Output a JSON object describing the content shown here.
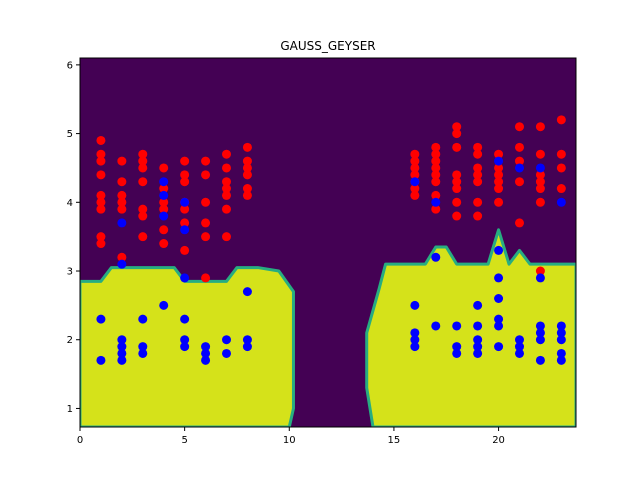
{
  "chart_data": {
    "type": "scatter",
    "title": "GAUSS_GEYSER",
    "xlabel": "",
    "ylabel": "",
    "xlim": [
      0,
      23.7
    ],
    "ylim": [
      0.73,
      6.1
    ],
    "xticks": [
      0,
      5,
      10,
      15,
      20
    ],
    "yticks": [
      1,
      2,
      3,
      4,
      5,
      6
    ],
    "grid": false,
    "background_regions": {
      "type": "decision-boundary-contour",
      "colors": {
        "class_red": "#440154",
        "class_blue": "#d5e21a",
        "edge": "#27ad81"
      },
      "blue_region_left_boundary": [
        [
          0,
          2.85
        ],
        [
          1,
          2.85
        ],
        [
          1.5,
          3.05
        ],
        [
          4.5,
          3.05
        ],
        [
          5,
          2.85
        ],
        [
          7,
          2.85
        ],
        [
          7.5,
          3.05
        ],
        [
          8.5,
          3.05
        ],
        [
          9.5,
          3.0
        ],
        [
          10.2,
          2.7
        ],
        [
          10.2,
          1.0
        ],
        [
          10,
          0.73
        ]
      ],
      "blue_region_right_boundary": [
        [
          14,
          0.73
        ],
        [
          13.7,
          1.3
        ],
        [
          13.7,
          2.1
        ],
        [
          14.3,
          2.75
        ],
        [
          14.6,
          3.1
        ],
        [
          16.5,
          3.1
        ],
        [
          17.0,
          3.35
        ],
        [
          17.5,
          3.35
        ],
        [
          18,
          3.1
        ],
        [
          19.5,
          3.1
        ],
        [
          20,
          3.6
        ],
        [
          20.5,
          3.1
        ],
        [
          21,
          3.3
        ],
        [
          21.5,
          3.1
        ],
        [
          23.7,
          3.1
        ]
      ]
    },
    "series": [
      {
        "color": "#ff0000",
        "points": [
          [
            1,
            4.9
          ],
          [
            1,
            4.7
          ],
          [
            1,
            4.6
          ],
          [
            1,
            4.4
          ],
          [
            1,
            4.1
          ],
          [
            1,
            4.0
          ],
          [
            1,
            3.9
          ],
          [
            1,
            3.5
          ],
          [
            1,
            3.4
          ],
          [
            2,
            4.6
          ],
          [
            2,
            4.3
          ],
          [
            2,
            4.1
          ],
          [
            2,
            4.0
          ],
          [
            2,
            3.9
          ],
          [
            2,
            3.2
          ],
          [
            3,
            4.7
          ],
          [
            3,
            4.6
          ],
          [
            3,
            4.5
          ],
          [
            3,
            4.3
          ],
          [
            3,
            3.9
          ],
          [
            3,
            3.8
          ],
          [
            3,
            3.5
          ],
          [
            4,
            4.5
          ],
          [
            4,
            4.2
          ],
          [
            4,
            4.0
          ],
          [
            4,
            3.9
          ],
          [
            4,
            3.6
          ],
          [
            4,
            3.4
          ],
          [
            5,
            4.6
          ],
          [
            5,
            4.4
          ],
          [
            5,
            4.3
          ],
          [
            5,
            4.0
          ],
          [
            5,
            3.9
          ],
          [
            5,
            3.7
          ],
          [
            5,
            3.3
          ],
          [
            6,
            4.6
          ],
          [
            6,
            4.4
          ],
          [
            6,
            4.0
          ],
          [
            6,
            3.7
          ],
          [
            6,
            3.5
          ],
          [
            6,
            2.9
          ],
          [
            7,
            4.7
          ],
          [
            7,
            4.5
          ],
          [
            7,
            4.3
          ],
          [
            7,
            4.2
          ],
          [
            7,
            4.1
          ],
          [
            7,
            3.9
          ],
          [
            7,
            3.5
          ],
          [
            8,
            4.8
          ],
          [
            8,
            4.6
          ],
          [
            8,
            4.5
          ],
          [
            8,
            4.4
          ],
          [
            8,
            4.2
          ],
          [
            8,
            4.1
          ],
          [
            16,
            4.7
          ],
          [
            16,
            4.6
          ],
          [
            16,
            4.5
          ],
          [
            16,
            4.4
          ],
          [
            16,
            4.3
          ],
          [
            16,
            4.2
          ],
          [
            16,
            4.1
          ],
          [
            17,
            4.8
          ],
          [
            17,
            4.7
          ],
          [
            17,
            4.6
          ],
          [
            17,
            4.5
          ],
          [
            17,
            4.4
          ],
          [
            17,
            4.3
          ],
          [
            17,
            4.1
          ],
          [
            17,
            3.9
          ],
          [
            18,
            5.1
          ],
          [
            18,
            5.0
          ],
          [
            18,
            4.8
          ],
          [
            18,
            4.4
          ],
          [
            18,
            4.3
          ],
          [
            18,
            4.2
          ],
          [
            18,
            4.0
          ],
          [
            18,
            3.8
          ],
          [
            19,
            4.8
          ],
          [
            19,
            4.7
          ],
          [
            19,
            4.5
          ],
          [
            19,
            4.4
          ],
          [
            19,
            4.3
          ],
          [
            19,
            4.0
          ],
          [
            19,
            3.8
          ],
          [
            20,
            4.7
          ],
          [
            20,
            4.5
          ],
          [
            20,
            4.4
          ],
          [
            20,
            4.3
          ],
          [
            20,
            4.2
          ],
          [
            20,
            4.0
          ],
          [
            21,
            5.1
          ],
          [
            21,
            4.8
          ],
          [
            21,
            4.6
          ],
          [
            21,
            4.3
          ],
          [
            21,
            3.7
          ],
          [
            22,
            5.1
          ],
          [
            22,
            4.7
          ],
          [
            22,
            4.4
          ],
          [
            22,
            4.3
          ],
          [
            22,
            4.2
          ],
          [
            22,
            4.0
          ],
          [
            22,
            3.0
          ],
          [
            23,
            5.2
          ],
          [
            23,
            4.7
          ],
          [
            23,
            4.5
          ],
          [
            23,
            4.2
          ]
        ]
      },
      {
        "color": "#0000ff",
        "points": [
          [
            1,
            2.3
          ],
          [
            1,
            1.7
          ],
          [
            2,
            3.7
          ],
          [
            2,
            3.1
          ],
          [
            2,
            2.0
          ],
          [
            2,
            1.9
          ],
          [
            2,
            1.8
          ],
          [
            2,
            1.7
          ],
          [
            3,
            2.3
          ],
          [
            3,
            1.9
          ],
          [
            3,
            1.8
          ],
          [
            4,
            4.3
          ],
          [
            4,
            4.1
          ],
          [
            4,
            3.8
          ],
          [
            4,
            2.5
          ],
          [
            5,
            4.0
          ],
          [
            5,
            3.6
          ],
          [
            5,
            2.9
          ],
          [
            5,
            2.3
          ],
          [
            5,
            2.0
          ],
          [
            5,
            1.9
          ],
          [
            6,
            1.9
          ],
          [
            6,
            1.8
          ],
          [
            6,
            1.7
          ],
          [
            7,
            2.0
          ],
          [
            7,
            1.8
          ],
          [
            8,
            2.7
          ],
          [
            8,
            2.0
          ],
          [
            8,
            1.9
          ],
          [
            16,
            4.3
          ],
          [
            16,
            2.5
          ],
          [
            16,
            2.1
          ],
          [
            16,
            2.0
          ],
          [
            16,
            1.9
          ],
          [
            17,
            4.0
          ],
          [
            17,
            3.2
          ],
          [
            17,
            2.2
          ],
          [
            18,
            2.2
          ],
          [
            18,
            1.9
          ],
          [
            18,
            1.8
          ],
          [
            19,
            2.5
          ],
          [
            19,
            2.2
          ],
          [
            19,
            2.0
          ],
          [
            19,
            1.9
          ],
          [
            19,
            1.8
          ],
          [
            20,
            4.6
          ],
          [
            20,
            3.3
          ],
          [
            20,
            2.9
          ],
          [
            20,
            2.6
          ],
          [
            20,
            2.3
          ],
          [
            20,
            2.2
          ],
          [
            20,
            1.9
          ],
          [
            21,
            4.5
          ],
          [
            21,
            2.0
          ],
          [
            21,
            1.9
          ],
          [
            21,
            1.8
          ],
          [
            22,
            4.5
          ],
          [
            22,
            2.9
          ],
          [
            22,
            2.2
          ],
          [
            22,
            2.1
          ],
          [
            22,
            2.0
          ],
          [
            22,
            1.7
          ],
          [
            23,
            4.0
          ],
          [
            23,
            2.2
          ],
          [
            23,
            2.1
          ],
          [
            23,
            2.0
          ],
          [
            23,
            1.8
          ],
          [
            23,
            1.7
          ]
        ]
      }
    ]
  }
}
